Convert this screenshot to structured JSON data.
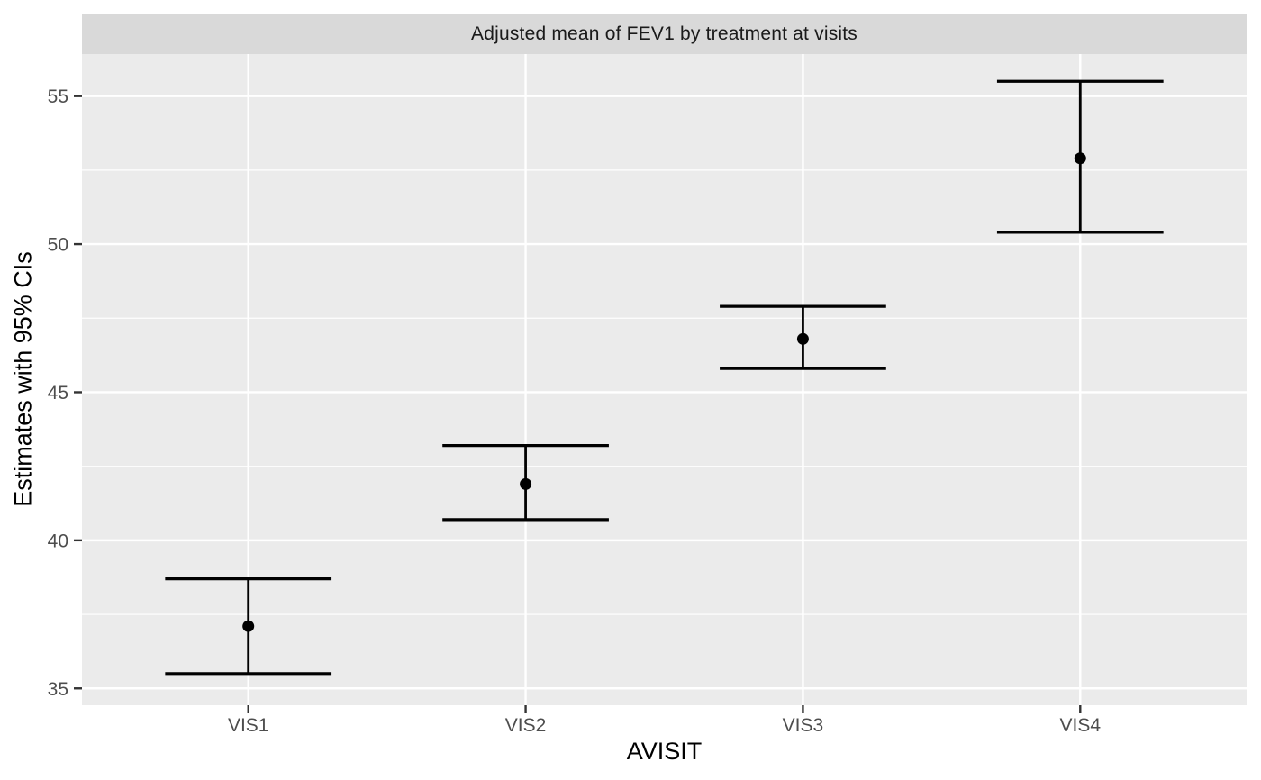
{
  "chart_data": {
    "type": "errorbar",
    "title": "Adjusted mean of FEV1 by treatment at visits",
    "xlabel": "AVISIT",
    "ylabel": "Estimates with 95% CIs",
    "categories": [
      "VIS1",
      "VIS2",
      "VIS3",
      "VIS4"
    ],
    "series": [
      {
        "name": "adjusted_mean",
        "values": [
          37.1,
          41.9,
          46.8,
          52.9
        ]
      }
    ],
    "ci_lower": [
      35.5,
      40.7,
      45.8,
      50.4
    ],
    "ci_upper": [
      38.7,
      43.2,
      47.9,
      55.5
    ],
    "y_ticks": [
      35,
      40,
      45,
      50,
      55
    ],
    "y_minor_ticks": [
      37.5,
      42.5,
      47.5,
      52.5
    ],
    "ylim": [
      34.43,
      56.42
    ],
    "grid": "major+minor, white on grey panel",
    "legend": "none",
    "colors": {
      "figure_bg": "#ffffff",
      "panel_bg": "#ebebeb",
      "strip_bg": "#d9d9d9",
      "grid": "#ffffff",
      "data": "#000000",
      "tick_mark": "#333333",
      "tick_label": "#4d4d4d",
      "axis_title": "#000000",
      "strip_text": "#1a1a1a"
    }
  }
}
